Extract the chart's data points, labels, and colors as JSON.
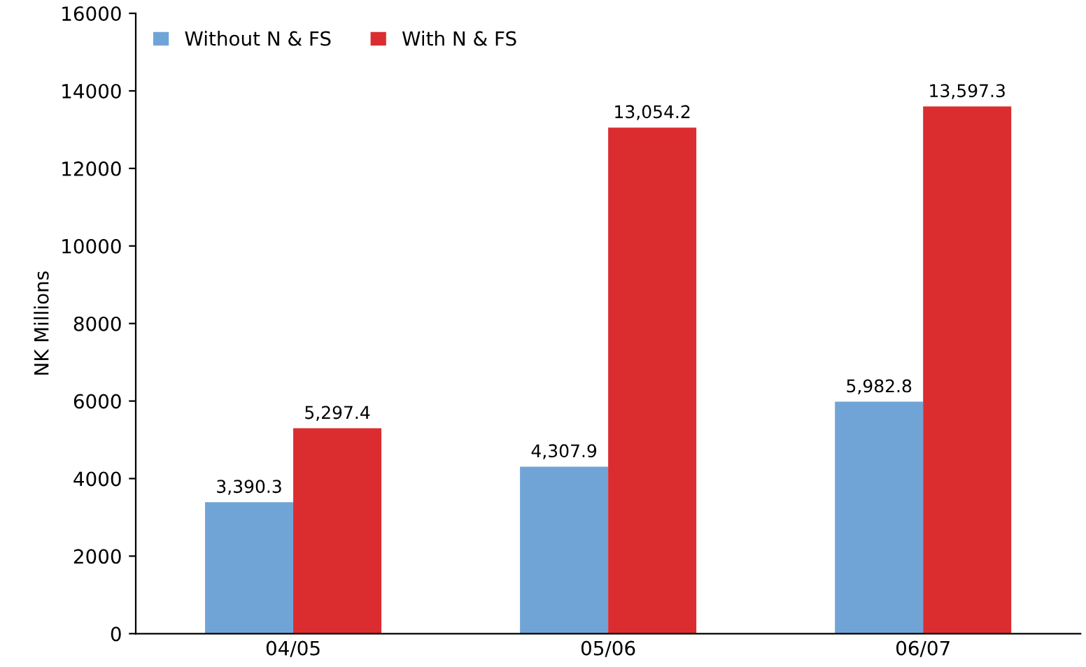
{
  "chart_data": {
    "type": "bar",
    "ylabel": "NK Millions",
    "categories": [
      "04/05",
      "05/06",
      "06/07"
    ],
    "series": [
      {
        "name": "Without N & FS",
        "color": "#71a4d6",
        "values": [
          3390.3,
          4307.9,
          5982.8
        ],
        "value_labels": [
          "3,390.3",
          "4,307.9",
          "5,982.8"
        ]
      },
      {
        "name": "With N & FS",
        "color": "#db2d2f",
        "values": [
          5297.4,
          13054.2,
          13597.3
        ],
        "value_labels": [
          "5,297.4",
          "13,054.2",
          "13,597.3"
        ]
      }
    ],
    "ylim": [
      0,
      16000
    ],
    "yticks": [
      0,
      2000,
      4000,
      6000,
      8000,
      10000,
      12000,
      14000,
      16000
    ],
    "grid": false,
    "legend": "top left"
  }
}
